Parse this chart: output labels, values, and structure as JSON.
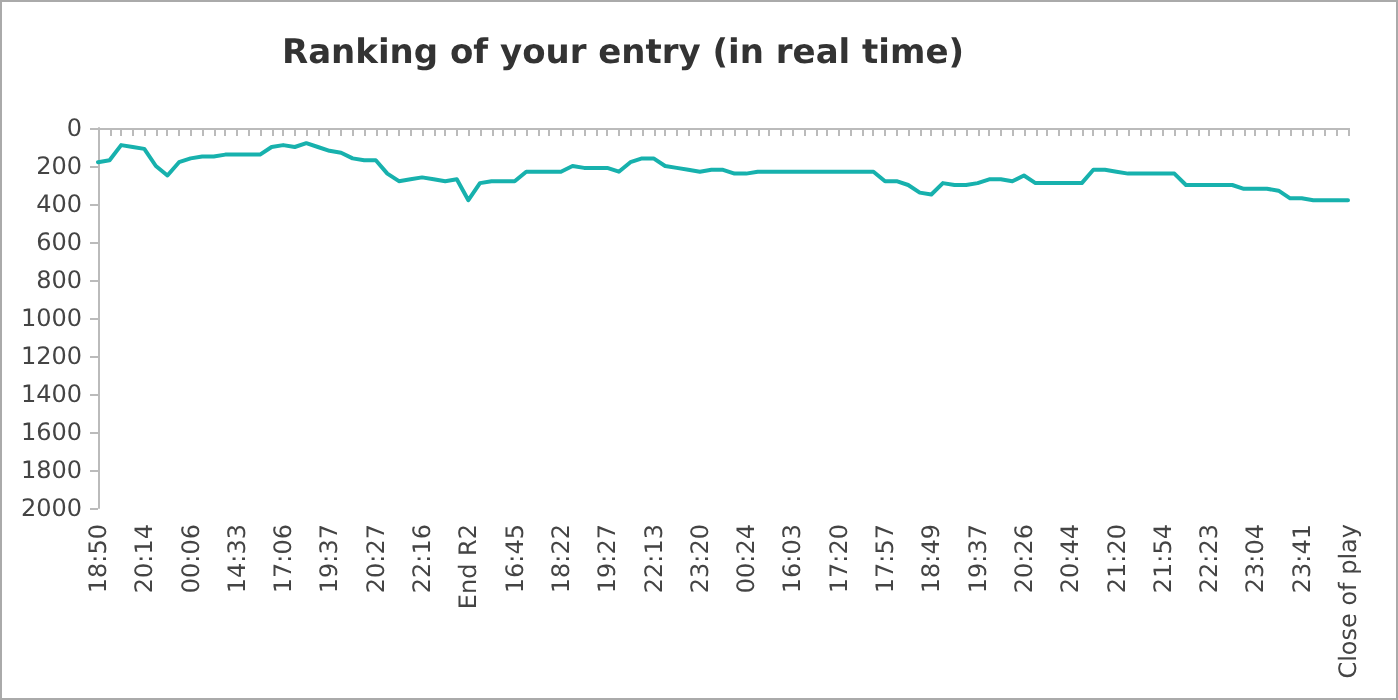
{
  "chart_data": {
    "type": "line",
    "title": "Ranking of your entry (in real time)",
    "categories": [
      "18:50",
      null,
      null,
      null,
      "20:14",
      null,
      null,
      null,
      "00:06",
      null,
      null,
      null,
      "14:33",
      null,
      null,
      null,
      "17:06",
      null,
      null,
      null,
      "19:37",
      null,
      null,
      null,
      "20:27",
      null,
      null,
      null,
      "22:16",
      null,
      null,
      null,
      "End R2",
      null,
      null,
      null,
      "16:45",
      null,
      null,
      null,
      "18:22",
      null,
      null,
      null,
      "19:27",
      null,
      null,
      null,
      "22:13",
      null,
      null,
      null,
      "23:20",
      null,
      null,
      null,
      "00:24",
      null,
      null,
      null,
      "16:03",
      null,
      null,
      null,
      "17:20",
      null,
      null,
      null,
      "17:57",
      null,
      null,
      null,
      "18:49",
      null,
      null,
      null,
      "19:37",
      null,
      null,
      null,
      "20:26",
      null,
      null,
      null,
      "20:44",
      null,
      null,
      null,
      "21:20",
      null,
      null,
      null,
      "21:54",
      null,
      null,
      null,
      "22:23",
      null,
      null,
      null,
      "23:04",
      null,
      null,
      null,
      "23:41",
      null,
      null,
      null,
      "Close of play"
    ],
    "series": [
      {
        "color": "#17b1ad",
        "values": [
          180,
          170,
          90,
          100,
          110,
          200,
          250,
          180,
          160,
          150,
          150,
          140,
          140,
          140,
          140,
          100,
          90,
          100,
          80,
          100,
          120,
          130,
          160,
          170,
          170,
          240,
          280,
          270,
          260,
          270,
          280,
          270,
          380,
          290,
          280,
          280,
          280,
          230,
          230,
          230,
          230,
          200,
          210,
          210,
          210,
          230,
          180,
          160,
          160,
          200,
          210,
          220,
          230,
          220,
          220,
          240,
          240,
          230,
          230,
          230,
          230,
          230,
          230,
          230,
          230,
          230,
          230,
          230,
          280,
          280,
          300,
          340,
          350,
          290,
          300,
          300,
          290,
          270,
          270,
          280,
          250,
          290,
          290,
          290,
          290,
          290,
          220,
          220,
          230,
          240,
          240,
          240,
          240,
          240,
          300,
          300,
          300,
          300,
          300,
          320,
          320,
          320,
          330,
          370,
          370,
          380,
          380,
          380,
          380
        ]
      }
    ],
    "ylim": [
      2000,
      0
    ],
    "yticks": [
      0,
      200,
      400,
      600,
      800,
      1000,
      1200,
      1400,
      1600,
      1800,
      2000
    ],
    "grid": false,
    "marker": "none",
    "line_style": "solid"
  }
}
